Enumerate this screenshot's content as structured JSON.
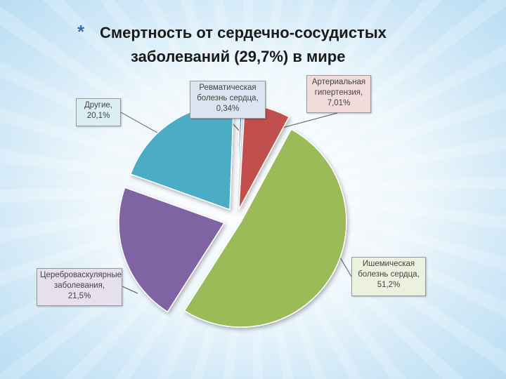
{
  "slide": {
    "bullet": "*",
    "title_line1": "Смертность от сердечно-сосудистых",
    "title_line2": "заболеваний  (29,7%) в мире"
  },
  "chart_data": {
    "type": "pie",
    "exploded": true,
    "series": [
      {
        "name": "Ревматическая болезнь сердца",
        "value": 0.34,
        "label_lines": [
          "Ревматическая",
          "болезнь сердца,",
          "0,34%"
        ],
        "color": "#4f81bd",
        "label_bg": "#dbe5f1"
      },
      {
        "name": "Артериальная гипертензия",
        "value": 7.01,
        "label_lines": [
          "Артериальная",
          "гипертензия,",
          "7,01%"
        ],
        "color": "#c0504d",
        "label_bg": "#f2dcdb"
      },
      {
        "name": "Ишемическая болезнь сердца",
        "value": 51.2,
        "label_lines": [
          "Ишемическая",
          "болезнь сердца,",
          "51,2%"
        ],
        "color": "#9bbb59",
        "label_bg": "#ebf1de"
      },
      {
        "name": "Цереброваскулярные заболевания",
        "value": 21.5,
        "label_lines": [
          "Цереброваскулярные",
          "заболевания,",
          "21,5%"
        ],
        "color": "#8064a2",
        "label_bg": "#e5e0ec"
      },
      {
        "name": "Другие",
        "value": 20.1,
        "label_lines": [
          "Другие,",
          "20,1%"
        ],
        "color": "#4bacc6",
        "label_bg": "#dbeef3"
      }
    ]
  }
}
